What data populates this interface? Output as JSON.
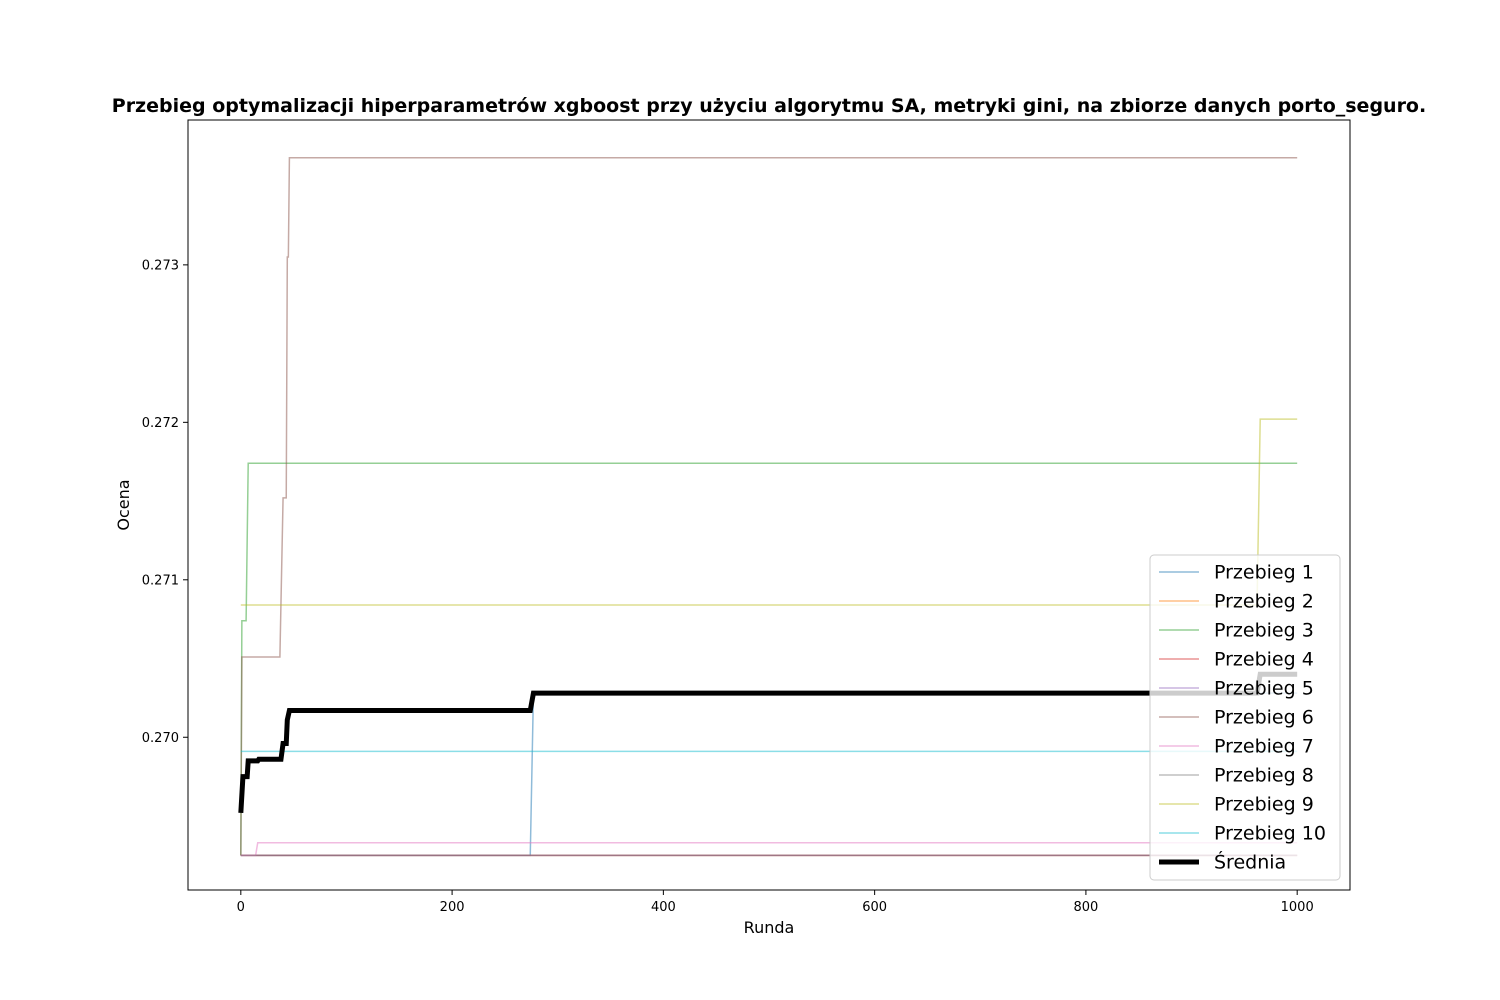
{
  "chart_data": {
    "type": "line",
    "title": "Przebieg optymalizacji hiperparametrów xgboost przy użyciu algorytmu SA, metryki gini, na zbiorze danych porto_seguro.",
    "xlabel": "Runda",
    "ylabel": "Ocena",
    "xlim": [
      -50,
      1050
    ],
    "ylim": [
      0.26903,
      0.27392
    ],
    "xticks": [
      0,
      200,
      400,
      600,
      800,
      1000
    ],
    "xtick_labels": [
      "0",
      "200",
      "400",
      "600",
      "800",
      "1000"
    ],
    "yticks": [
      0.27,
      0.271,
      0.272,
      0.273
    ],
    "ytick_labels": [
      "0.270",
      "0.271",
      "0.272",
      "0.273"
    ],
    "grid": false,
    "legend_position": "lower-right",
    "series": [
      {
        "name": "Przebieg 1",
        "color": "#1f77b4",
        "alpha": 0.5,
        "width": 1.5,
        "points": [
          [
            0,
            0.26925
          ],
          [
            274,
            0.26925
          ],
          [
            277,
            0.27028
          ],
          [
            1000,
            0.27028
          ]
        ]
      },
      {
        "name": "Przebieg 2",
        "color": "#ff7f0e",
        "alpha": 0.5,
        "width": 1.5,
        "points": [
          [
            0,
            0.26925
          ],
          [
            1000,
            0.26925
          ]
        ]
      },
      {
        "name": "Przebieg 3",
        "color": "#2ca02c",
        "alpha": 0.5,
        "width": 1.5,
        "points": [
          [
            0,
            0.26925
          ],
          [
            1,
            0.27074
          ],
          [
            5,
            0.27074
          ],
          [
            7,
            0.27174
          ],
          [
            1000,
            0.27174
          ]
        ]
      },
      {
        "name": "Przebieg 4",
        "color": "#d62728",
        "alpha": 0.5,
        "width": 1.5,
        "points": [
          [
            0,
            0.26925
          ],
          [
            1000,
            0.26925
          ]
        ]
      },
      {
        "name": "Przebieg 5",
        "color": "#9467bd",
        "alpha": 0.5,
        "width": 1.5,
        "points": [
          [
            0,
            0.26925
          ],
          [
            1000,
            0.26925
          ]
        ]
      },
      {
        "name": "Przebieg 6",
        "color": "#8c564b",
        "alpha": 0.5,
        "width": 1.5,
        "points": [
          [
            0,
            0.26925
          ],
          [
            1,
            0.27051
          ],
          [
            37,
            0.27051
          ],
          [
            40,
            0.27152
          ],
          [
            43,
            0.27152
          ],
          [
            44,
            0.27305
          ],
          [
            45,
            0.27305
          ],
          [
            46,
            0.27368
          ],
          [
            1000,
            0.27368
          ]
        ]
      },
      {
        "name": "Przebieg 7",
        "color": "#e377c2",
        "alpha": 0.5,
        "width": 1.5,
        "points": [
          [
            0,
            0.26925
          ],
          [
            14,
            0.26925
          ],
          [
            16,
            0.26933
          ],
          [
            1000,
            0.26933
          ]
        ]
      },
      {
        "name": "Przebieg 8",
        "color": "#7f7f7f",
        "alpha": 0.5,
        "width": 1.5,
        "points": [
          [
            0,
            0.26925
          ],
          [
            1000,
            0.26925
          ]
        ]
      },
      {
        "name": "Przebieg 9",
        "color": "#bcbd22",
        "alpha": 0.5,
        "width": 1.5,
        "points": [
          [
            0,
            0.27084
          ],
          [
            962,
            0.27084
          ],
          [
            965,
            0.27202
          ],
          [
            1000,
            0.27202
          ]
        ]
      },
      {
        "name": "Przebieg 10",
        "color": "#17becf",
        "alpha": 0.5,
        "width": 1.5,
        "points": [
          [
            0,
            0.26991
          ],
          [
            1000,
            0.26991
          ]
        ]
      },
      {
        "name": "Średnia",
        "color": "#000000",
        "alpha": 1,
        "width": 5,
        "points": [
          [
            0,
            0.26952
          ],
          [
            2,
            0.26975
          ],
          [
            6,
            0.26975
          ],
          [
            7,
            0.26985
          ],
          [
            16,
            0.26985
          ],
          [
            17,
            0.26986
          ],
          [
            38,
            0.26986
          ],
          [
            40,
            0.26996
          ],
          [
            43,
            0.26996
          ],
          [
            44,
            0.27011
          ],
          [
            46,
            0.27017
          ],
          [
            274,
            0.27017
          ],
          [
            277,
            0.27028
          ],
          [
            962,
            0.27028
          ],
          [
            965,
            0.2704
          ],
          [
            1000,
            0.2704
          ]
        ]
      }
    ]
  }
}
